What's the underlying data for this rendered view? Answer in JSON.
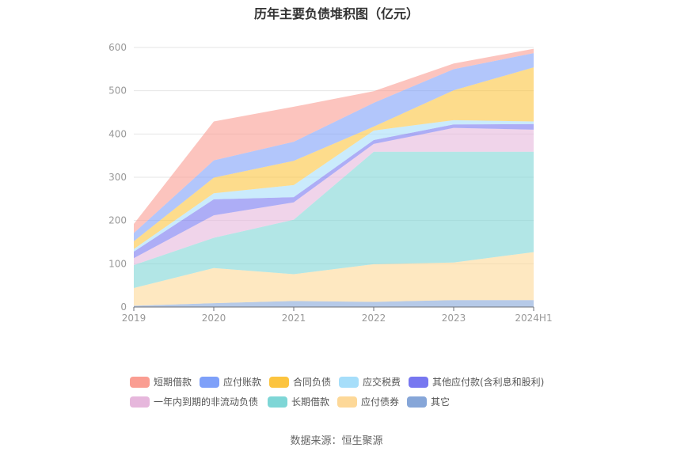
{
  "chart_data": {
    "type": "area",
    "stacked": true,
    "title": "历年主要负债堆积图（亿元）",
    "categories": [
      "2019",
      "2020",
      "2021",
      "2022",
      "2023",
      "2024H1"
    ],
    "ylim": [
      0,
      600
    ],
    "yticks": [
      0,
      100,
      200,
      300,
      400,
      500,
      600
    ],
    "grid": true,
    "legend_position": "bottom",
    "series": [
      {
        "name": "短期借款",
        "color": "#fa9d92",
        "values": [
          21,
          90,
          81,
          27,
          13,
          10
        ]
      },
      {
        "name": "应付账款",
        "color": "#7ea0f9",
        "values": [
          19,
          40,
          44,
          55,
          49,
          33
        ]
      },
      {
        "name": "合同负债",
        "color": "#fcc43f",
        "values": [
          18,
          36,
          56,
          9,
          69,
          125
        ]
      },
      {
        "name": "应交税费",
        "color": "#a6defa",
        "values": [
          6,
          14,
          28,
          22,
          10,
          6
        ]
      },
      {
        "name": "其他应付款(含利息和股利)",
        "color": "#7777f0",
        "values": [
          15,
          37,
          12,
          9,
          8,
          13
        ]
      },
      {
        "name": "一年内到期的非流动负债",
        "color": "#e6b7dc",
        "values": [
          16,
          52,
          40,
          18,
          55,
          51
        ]
      },
      {
        "name": "长期借款",
        "color": "#7ed6d6",
        "values": [
          53,
          70,
          126,
          260,
          256,
          232
        ]
      },
      {
        "name": "应付债券",
        "color": "#fdd898",
        "values": [
          41,
          81,
          62,
          87,
          87,
          111
        ]
      },
      {
        "name": "其它",
        "color": "#86a6d8",
        "values": [
          3,
          9,
          14,
          12,
          16,
          16
        ]
      }
    ]
  },
  "source": "数据来源：恒生聚源"
}
